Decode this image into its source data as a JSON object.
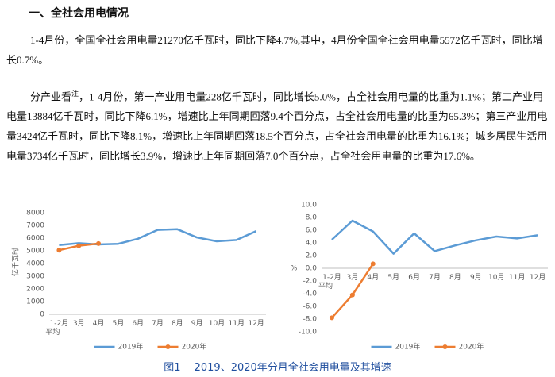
{
  "heading": "一、全社会用电情况",
  "paragraph1": "1-4月份，全国全社会用电量21270亿千瓦时，同比下降4.7%,其中，4月份全国全社会用电量5572亿千瓦时，同比增长0.7%。",
  "paragraph2": {
    "lead": "分产业看",
    "note": "注",
    "body": "，1-4月份，第一产业用电量228亿千瓦时，同比增长5.0%，占全社会用电量的比重为1.1%；第二产业用电量13884亿千瓦时，同比下降6.1%，增速比上年同期回落9.4个百分点，占全社会用电量的比重为65.3%；第三产业用电量3424亿千瓦时，同比下降8.1%，增速比上年同期回落18.5个百分点，占全社会用电量的比重为16.1%；城乡居民生活用电量3734亿千瓦时，同比增长3.9%，增速比上年同期回落7.0个百分点，占全社会用电量的比重为17.6%。"
  },
  "chart_data": [
    {
      "type": "line",
      "ylabel": "亿千瓦时",
      "categories": [
        "1-2月\n平均",
        "3月",
        "4月",
        "5月",
        "6月",
        "7月",
        "8月",
        "9月",
        "10月",
        "11月",
        "12月"
      ],
      "series": [
        {
          "name": "2019年",
          "color": "#5b9bd5",
          "values": [
            5450,
            5600,
            5500,
            5550,
            5950,
            6650,
            6700,
            6050,
            5750,
            5850,
            6550
          ]
        },
        {
          "name": "2020年",
          "color": "#ed7d31",
          "values": [
            5050,
            5400,
            5572,
            null,
            null,
            null,
            null,
            null,
            null,
            null,
            null
          ]
        }
      ],
      "ylim": [
        0,
        8000
      ],
      "yticks": [
        0,
        1000,
        2000,
        3000,
        4000,
        5000,
        6000,
        7000,
        8000
      ],
      "grid": false,
      "legend": "bottom"
    },
    {
      "type": "line",
      "ylabel": "%",
      "categories": [
        "1-2月\n平均",
        "3月",
        "4月",
        "5月",
        "6月",
        "7月",
        "8月",
        "9月",
        "10月",
        "11月",
        "12月"
      ],
      "series": [
        {
          "name": "2019年",
          "color": "#5b9bd5",
          "values": [
            4.5,
            7.5,
            5.8,
            2.3,
            5.5,
            2.7,
            3.6,
            4.4,
            5.0,
            4.7,
            5.2
          ]
        },
        {
          "name": "2020年",
          "color": "#ed7d31",
          "values": [
            -7.8,
            -4.2,
            0.7,
            null,
            null,
            null,
            null,
            null,
            null,
            null,
            null
          ]
        }
      ],
      "ylim": [
        -10,
        10
      ],
      "yticks": [
        {
          "value": -10,
          "label": "-10.0"
        },
        {
          "value": -8,
          "label": "-8.0"
        },
        {
          "value": -6,
          "label": "-6.0"
        },
        {
          "value": -4,
          "label": "-4.0"
        },
        {
          "value": -2,
          "label": "-2.0"
        },
        {
          "value": 0,
          "label": "0.0"
        },
        {
          "value": 2,
          "label": "2.0"
        },
        {
          "value": 4,
          "label": "4.0"
        },
        {
          "value": 6,
          "label": "6.0"
        },
        {
          "value": 8,
          "label": "8.0"
        },
        {
          "value": 10,
          "label": "10.0"
        }
      ],
      "grid": false,
      "legend": "bottom"
    }
  ],
  "caption": "图1　 2019、2020年分月全社会用电量及其增速"
}
